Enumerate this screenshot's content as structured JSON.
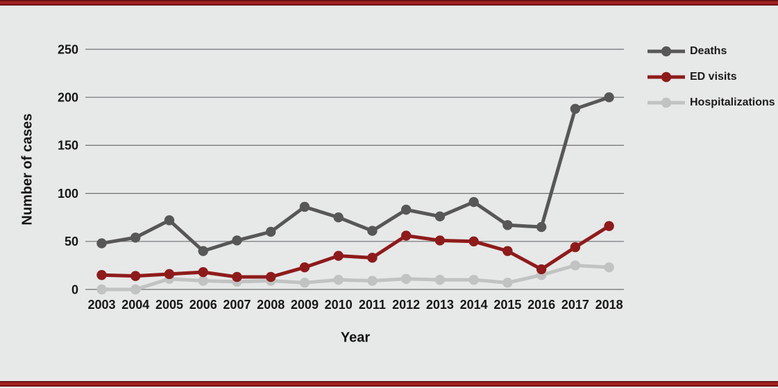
{
  "page": {
    "background": "#e7e8e8",
    "accent_bar_colors": [
      "#5a0e0e",
      "#a12020",
      "#701212"
    ],
    "gridline_color": "#6f7072",
    "text_color": "#171717"
  },
  "chart_data": {
    "type": "line",
    "x": [
      2003,
      2004,
      2005,
      2006,
      2007,
      2008,
      2009,
      2010,
      2011,
      2012,
      2013,
      2014,
      2015,
      2016,
      2017,
      2018
    ],
    "series": [
      {
        "name": "Deaths",
        "color": "#575757",
        "values": [
          48,
          54,
          72,
          40,
          51,
          60,
          86,
          75,
          61,
          83,
          76,
          91,
          67,
          65,
          188,
          200
        ]
      },
      {
        "name": "ED visits",
        "color": "#8e1b1b",
        "values": [
          15,
          14,
          16,
          18,
          13,
          13,
          23,
          35,
          33,
          56,
          51,
          50,
          40,
          21,
          44,
          66
        ]
      },
      {
        "name": "Hospitalizations",
        "color": "#c1c2c2",
        "values": [
          0,
          0,
          11,
          9,
          8,
          9,
          7,
          10,
          9,
          11,
          10,
          10,
          7,
          15,
          25,
          23
        ]
      }
    ],
    "xlabel": "Year",
    "ylabel": "Number of cases",
    "ylim": [
      0,
      250
    ],
    "yticks": [
      0,
      50,
      100,
      150,
      200,
      250
    ],
    "grid": "horizontal",
    "legend_position": "right"
  }
}
